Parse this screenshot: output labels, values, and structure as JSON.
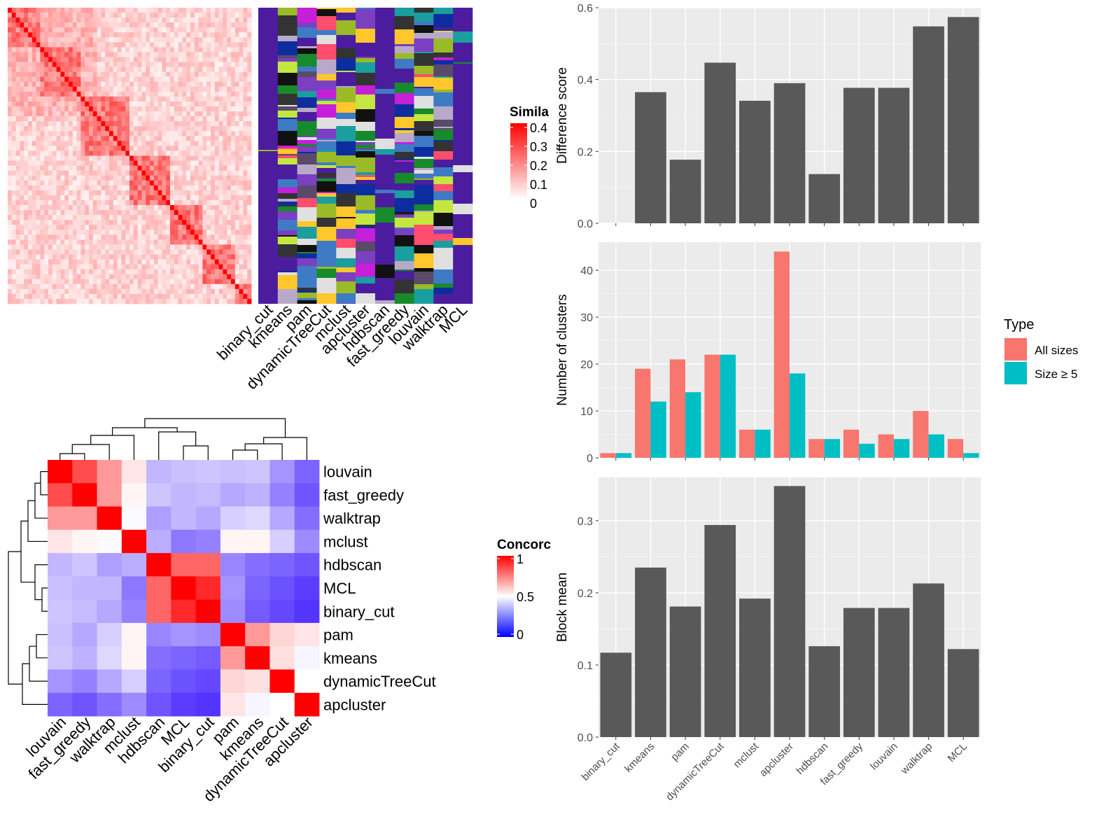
{
  "chart_data": [
    {
      "type": "heatmap",
      "panel": "similarity",
      "legend": {
        "title": "Simila",
        "ticks": [
          "0.4",
          "0.3",
          "0.2",
          "0.1",
          "0"
        ],
        "colors": [
          "#ffffff",
          "#ff0000"
        ]
      },
      "columns": [
        "binary_cut",
        "kmeans",
        "pam",
        "dynamicTreeCut",
        "mclust",
        "apcluster",
        "hdbscan",
        "fast_greedy",
        "louvain",
        "walktrap",
        "MCL"
      ]
    },
    {
      "type": "heatmap",
      "panel": "concordance",
      "legend": {
        "title": "Concorc",
        "ticks": [
          "1",
          "0.5",
          "0"
        ],
        "colors": [
          "#0000ff",
          "#ffffff",
          "#ff0000"
        ]
      },
      "row_labels": [
        "louvain",
        "fast_greedy",
        "walktrap",
        "mclust",
        "hdbscan",
        "MCL",
        "binary_cut",
        "pam",
        "kmeans",
        "dynamicTreeCut",
        "apcluster"
      ],
      "col_labels": [
        "louvain",
        "fast_greedy",
        "walktrap",
        "mclust",
        "hdbscan",
        "MCL",
        "binary_cut",
        "pam",
        "kmeans",
        "dynamicTreeCut",
        "apcluster"
      ],
      "values": [
        [
          1.0,
          0.85,
          0.7,
          0.55,
          0.35,
          0.37,
          0.38,
          0.37,
          0.38,
          0.28,
          0.18
        ],
        [
          0.85,
          1.0,
          0.7,
          0.52,
          0.38,
          0.35,
          0.36,
          0.32,
          0.34,
          0.24,
          0.15
        ],
        [
          0.7,
          0.7,
          1.0,
          0.49,
          0.3,
          0.35,
          0.32,
          0.4,
          0.42,
          0.32,
          0.2
        ],
        [
          0.55,
          0.52,
          0.49,
          1.0,
          0.33,
          0.22,
          0.24,
          0.52,
          0.52,
          0.4,
          0.26
        ],
        [
          0.35,
          0.38,
          0.3,
          0.33,
          1.0,
          0.8,
          0.8,
          0.25,
          0.2,
          0.18,
          0.15
        ],
        [
          0.37,
          0.35,
          0.35,
          0.22,
          0.8,
          1.0,
          0.92,
          0.28,
          0.18,
          0.14,
          0.1
        ],
        [
          0.38,
          0.36,
          0.32,
          0.24,
          0.8,
          0.92,
          1.0,
          0.26,
          0.16,
          0.12,
          0.08
        ],
        [
          0.37,
          0.32,
          0.4,
          0.52,
          0.25,
          0.28,
          0.26,
          1.0,
          0.7,
          0.58,
          0.55
        ],
        [
          0.38,
          0.34,
          0.42,
          0.52,
          0.2,
          0.18,
          0.16,
          0.7,
          1.0,
          0.56,
          0.48
        ],
        [
          0.28,
          0.24,
          0.32,
          0.4,
          0.18,
          0.14,
          0.12,
          0.58,
          0.56,
          1.0,
          0.5
        ],
        [
          0.18,
          0.15,
          0.2,
          0.26,
          0.15,
          0.1,
          0.08,
          0.55,
          0.48,
          0.5,
          1.0
        ]
      ]
    },
    {
      "type": "bar",
      "panel": "difference",
      "categories": [
        "binary_cut",
        "kmeans",
        "pam",
        "dynamicTreeCut",
        "mclust",
        "apcluster",
        "hdbscan",
        "fast_greedy",
        "louvain",
        "walktrap",
        "MCL"
      ],
      "values": [
        0.0,
        0.365,
        0.177,
        0.447,
        0.341,
        0.39,
        0.137,
        0.377,
        0.377,
        0.548,
        0.574
      ],
      "ylabel": "Difference score",
      "ylim": [
        0,
        0.6
      ],
      "yticks": [
        "0.0",
        "0.2",
        "0.4",
        "0.6"
      ]
    },
    {
      "type": "bar",
      "panel": "clusters",
      "categories": [
        "binary_cut",
        "kmeans",
        "pam",
        "dynamicTreeCut",
        "mclust",
        "apcluster",
        "hdbscan",
        "fast_greedy",
        "louvain",
        "walktrap",
        "MCL"
      ],
      "series": [
        {
          "name": "All sizes",
          "color": "#F8766D",
          "values": [
            1,
            19,
            21,
            22,
            6,
            44,
            4,
            6,
            5,
            10,
            4
          ]
        },
        {
          "name": "Size ≥ 5",
          "color": "#00BFC4",
          "values": [
            1,
            12,
            14,
            22,
            6,
            18,
            4,
            3,
            4,
            5,
            1
          ]
        }
      ],
      "ylabel": "Number of clusters",
      "ylim": [
        0,
        46
      ],
      "yticks": [
        "0",
        "10",
        "20",
        "30",
        "40"
      ],
      "legend": {
        "title": "Type",
        "position": "right"
      }
    },
    {
      "type": "bar",
      "panel": "blockmean",
      "categories": [
        "binary_cut",
        "kmeans",
        "pam",
        "dynamicTreeCut",
        "mclust",
        "apcluster",
        "hdbscan",
        "fast_greedy",
        "louvain",
        "walktrap",
        "MCL"
      ],
      "values": [
        0.117,
        0.235,
        0.181,
        0.294,
        0.192,
        0.348,
        0.126,
        0.179,
        0.179,
        0.213,
        0.122
      ],
      "ylabel": "Block mean",
      "ylim": [
        0,
        0.36
      ],
      "yticks": [
        "0.0",
        "0.1",
        "0.2",
        "0.3"
      ]
    }
  ]
}
